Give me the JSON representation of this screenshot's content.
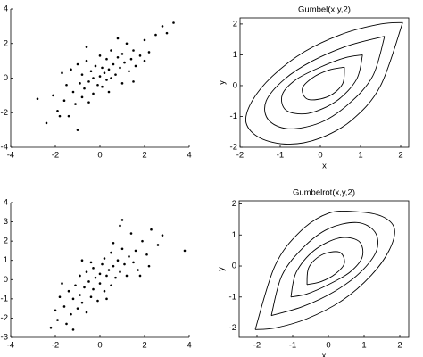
{
  "chart_data": [
    {
      "type": "scatter",
      "color": "#000000",
      "x": [
        -2.8,
        -2.4,
        -2.1,
        -1.9,
        -1.7,
        -1.6,
        -1.5,
        -1.4,
        -1.3,
        -1.2,
        -1.1,
        -1.0,
        -0.9,
        -0.8,
        -0.8,
        -0.7,
        -0.6,
        -0.5,
        -0.5,
        -0.4,
        -0.3,
        -0.3,
        -0.2,
        -0.1,
        0,
        0,
        0.1,
        0.1,
        0.2,
        0.3,
        0.3,
        0.4,
        0.5,
        0.5,
        0.6,
        0.7,
        0.8,
        0.9,
        1.0,
        1.0,
        1.1,
        1.2,
        1.3,
        1.4,
        1.5,
        1.6,
        1.8,
        2.0,
        2.2,
        2.5,
        2.8,
        3.0,
        3.3,
        -1.0,
        0.4,
        -0.6,
        1.5,
        -1.8,
        0.8,
        2.0
      ],
      "values": [
        -1.2,
        -2.6,
        -1.0,
        -1.9,
        0.3,
        -1.3,
        -0.4,
        -2.2,
        0.5,
        -0.8,
        -1.5,
        0.8,
        -0.3,
        -1.1,
        0.2,
        -0.6,
        1.0,
        -0.2,
        -1.4,
        0.4,
        0.0,
        -0.9,
        0.7,
        -0.4,
        0.1,
        1.3,
        -0.5,
        0.6,
        0.3,
        -0.1,
        1.1,
        0.5,
        0.0,
        1.6,
        0.8,
        0.2,
        1.2,
        0.6,
        -0.3,
        1.4,
        0.9,
        2.0,
        0.4,
        1.1,
        1.6,
        0.7,
        1.3,
        2.2,
        1.5,
        2.5,
        3.0,
        2.6,
        3.2,
        -3.0,
        -0.8,
        1.8,
        -0.2,
        -2.2,
        2.3,
        1.0
      ],
      "xlim": [
        -4,
        4
      ],
      "ylim": [
        -4,
        4
      ],
      "xticks": [
        -4,
        -2,
        0,
        2,
        4
      ],
      "yticks": [
        -4,
        -2,
        0,
        2,
        4
      ],
      "box": false
    },
    {
      "type": "contour",
      "title": "Gumbel(x,y,2)",
      "xlabel": "x",
      "ylabel": "y",
      "color": "#000000",
      "box": true,
      "xlim": [
        -2,
        2.2
      ],
      "ylim": [
        -2,
        2.2
      ],
      "xticks": [
        -2,
        -1,
        0,
        1,
        2
      ],
      "yticks": [
        -2,
        -1,
        0,
        1,
        2
      ],
      "series": [
        {
          "x": [
            2.05,
            1.5,
            0.8,
            0,
            -0.8,
            -1.5,
            -1.85,
            -1.7,
            -1.2,
            -0.4,
            0.6,
            1.5,
            2.05
          ],
          "values": [
            2.05,
            0,
            -1.1,
            -1.7,
            -1.9,
            -1.7,
            -1.2,
            -0.5,
            0.3,
            1.1,
            1.7,
            2.0,
            2.05
          ]
        },
        {
          "x": [
            1.6,
            1.3,
            0.7,
            0,
            -0.8,
            -1.3,
            -1.35,
            -0.9,
            -0.2,
            0.7,
            1.6
          ],
          "values": [
            1.6,
            0.3,
            -0.6,
            -1.2,
            -1.4,
            -1.1,
            -0.5,
            0.2,
            0.8,
            1.3,
            1.6
          ]
        },
        {
          "x": [
            1.05,
            0.9,
            0.4,
            -0.3,
            -0.85,
            -0.95,
            -0.6,
            0,
            0.6,
            1.05
          ],
          "values": [
            1.0,
            0.2,
            -0.5,
            -0.9,
            -0.8,
            -0.3,
            0.2,
            0.6,
            0.9,
            1.0
          ]
        },
        {
          "x": [
            0.6,
            0.55,
            0.2,
            -0.3,
            -0.45,
            -0.2,
            0.2,
            0.6
          ],
          "values": [
            0.6,
            0.05,
            -0.35,
            -0.45,
            -0.1,
            0.25,
            0.5,
            0.6
          ]
        }
      ]
    },
    {
      "type": "scatter",
      "color": "#000000",
      "x": [
        -2.2,
        -2.0,
        -1.9,
        -1.8,
        -1.6,
        -1.5,
        -1.4,
        -1.3,
        -1.2,
        -1.1,
        -1.0,
        -0.9,
        -0.9,
        -0.8,
        -0.7,
        -0.6,
        -0.6,
        -0.5,
        -0.4,
        -0.3,
        -0.3,
        -0.2,
        -0.1,
        0,
        0,
        0.1,
        0.2,
        0.2,
        0.3,
        0.4,
        0.5,
        0.5,
        0.6,
        0.7,
        0.8,
        0.9,
        1.0,
        1.1,
        1.2,
        1.3,
        1.4,
        1.5,
        1.6,
        1.7,
        1.9,
        2.1,
        2.3,
        2.6,
        2.8,
        3.8,
        -1.7,
        -0.8,
        0.3,
        1.0,
        -1.2,
        0.6,
        1.8,
        -0.4,
        2.2,
        0.9
      ],
      "values": [
        -2.5,
        -1.6,
        -2.1,
        -0.9,
        -1.4,
        -2.3,
        -0.6,
        -1.8,
        -1.0,
        -0.3,
        -1.5,
        0.2,
        -0.8,
        -1.2,
        -0.4,
        0.4,
        -1.7,
        -0.1,
        -0.9,
        0.6,
        -0.5,
        0.1,
        -1.1,
        0.3,
        -0.2,
        0.8,
        -0.6,
        1.1,
        0.2,
        0.5,
        -0.3,
        1.4,
        0.7,
        0.1,
        1.0,
        0.4,
        1.6,
        0.8,
        0.2,
        1.2,
        2.4,
        0.9,
        1.5,
        0.5,
        2.0,
        1.3,
        2.6,
        1.8,
        2.3,
        1.5,
        -0.2,
        1.0,
        -1.0,
        3.1,
        -2.6,
        1.9,
        0.2,
        0.9,
        0.7,
        2.8
      ],
      "xlim": [
        -4,
        4
      ],
      "ylim": [
        -3,
        4
      ],
      "xticks": [
        -4,
        -2,
        0,
        2,
        4
      ],
      "yticks": [
        -3,
        -2,
        -1,
        0,
        1,
        2,
        3,
        4
      ],
      "box": false
    },
    {
      "type": "contour",
      "title": "Gumbelrot(x,y,2)",
      "xlabel": "x",
      "ylabel": "y",
      "color": "#000000",
      "box": true,
      "xlim": [
        -2.5,
        2.25
      ],
      "ylim": [
        -2.3,
        2.1
      ],
      "xticks": [
        -2,
        -1,
        0,
        1,
        2
      ],
      "yticks": [
        -2,
        -1,
        0,
        1,
        2
      ],
      "series": [
        {
          "x": [
            -2.05,
            -1.5,
            -0.8,
            0,
            0.8,
            1.5,
            1.85,
            1.7,
            1.2,
            0.4,
            -0.6,
            -1.5,
            -2.05
          ],
          "values": [
            -2.05,
            0,
            1.1,
            1.7,
            1.75,
            1.6,
            1.2,
            0.5,
            -0.3,
            -1.1,
            -1.7,
            -2.0,
            -2.05
          ]
        },
        {
          "x": [
            -1.6,
            -1.3,
            -0.7,
            0,
            0.8,
            1.3,
            1.35,
            0.9,
            0.2,
            -0.7,
            -1.6
          ],
          "values": [
            -1.6,
            -0.3,
            0.6,
            1.2,
            1.4,
            1.1,
            0.5,
            -0.2,
            -0.8,
            -1.3,
            -1.6
          ]
        },
        {
          "x": [
            -1.05,
            -0.9,
            -0.4,
            0.3,
            0.85,
            0.95,
            0.6,
            0,
            -0.6,
            -1.05
          ],
          "values": [
            -1.0,
            -0.2,
            0.5,
            0.9,
            0.8,
            0.3,
            -0.2,
            -0.6,
            -0.9,
            -1.0
          ]
        },
        {
          "x": [
            -0.6,
            -0.55,
            -0.2,
            0.3,
            0.45,
            0.2,
            -0.2,
            -0.6
          ],
          "values": [
            -0.6,
            -0.05,
            0.35,
            0.45,
            0.1,
            -0.25,
            -0.5,
            -0.6
          ]
        }
      ]
    }
  ]
}
